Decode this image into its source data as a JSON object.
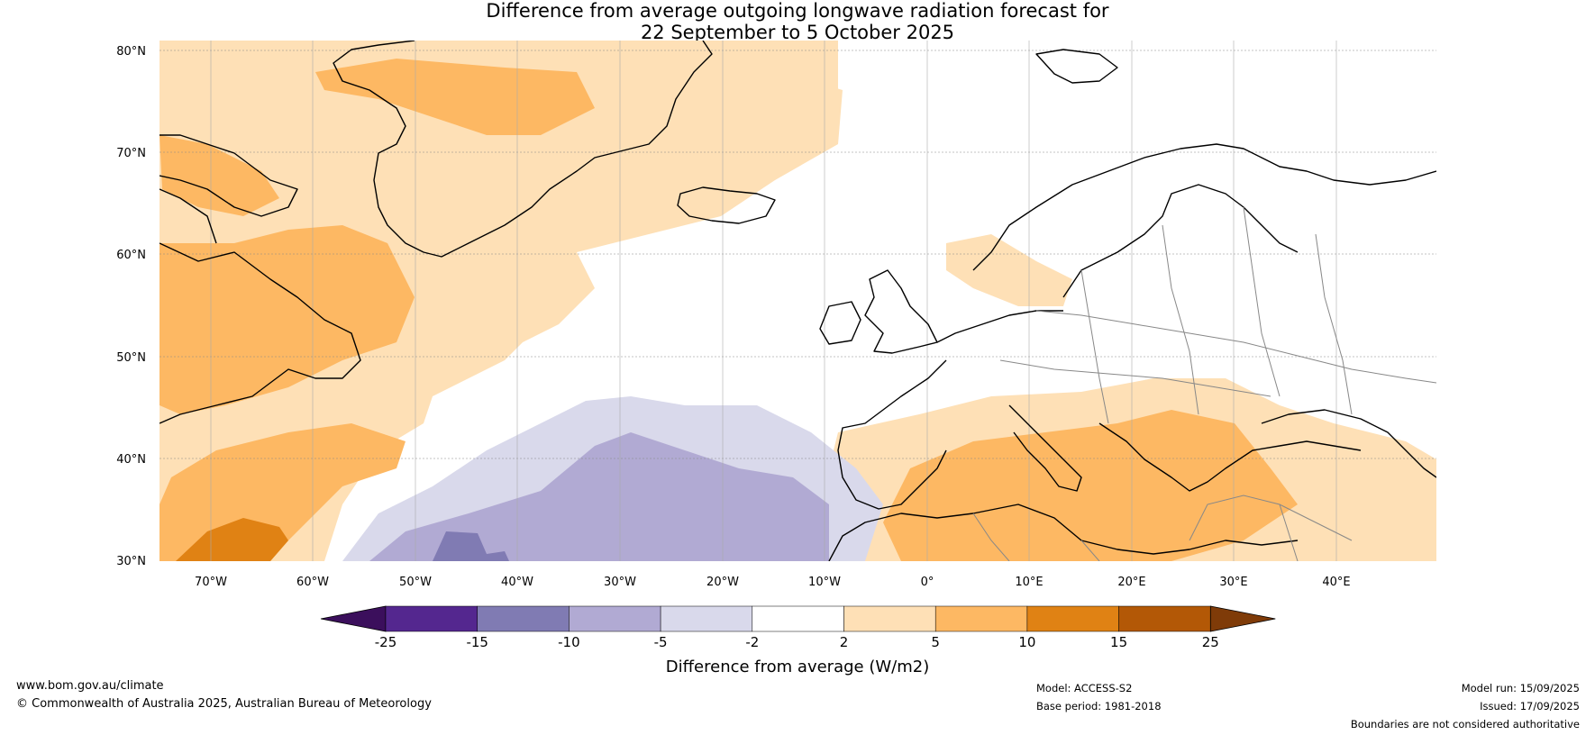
{
  "title": {
    "line1": "Difference from average outgoing longwave radiation forecast for",
    "line2": "22 September to 5 October 2025"
  },
  "map": {
    "lat_labels": [
      "80°N",
      "70°N",
      "60°N",
      "50°N",
      "40°N",
      "30°N"
    ],
    "lon_labels": [
      "70°W",
      "60°W",
      "50°W",
      "40°W",
      "30°W",
      "20°W",
      "10°W",
      "0°",
      "10°E",
      "20°E",
      "30°E",
      "40°E"
    ]
  },
  "colorbar": {
    "title": "Difference from average (W/m2)",
    "tick_labels": [
      "-25",
      "-15",
      "-10",
      "-5",
      "-2",
      "2",
      "5",
      "10",
      "15",
      "25"
    ],
    "colors": {
      "below": "#3b0f5c",
      "c1": "#54278f",
      "c2": "#807bb3",
      "c3": "#b1aad3",
      "c4": "#d9d9eb",
      "c5": "#ffffff",
      "c6": "#fee0b6",
      "c7": "#fdb863",
      "c8": "#e08214",
      "c9": "#b35806",
      "above": "#7f3b08"
    }
  },
  "footer": {
    "website": "www.bom.gov.au/climate",
    "copyright": "© Commonwealth of Australia 2025, Australian Bureau of Meteorology",
    "model": "Model: ACCESS-S2",
    "base_period": "Base period: 1981-2018",
    "model_run": "Model run: 15/09/2025",
    "issued": "Issued: 17/09/2025",
    "disclaimer": "Boundaries are not considered authoritative"
  }
}
